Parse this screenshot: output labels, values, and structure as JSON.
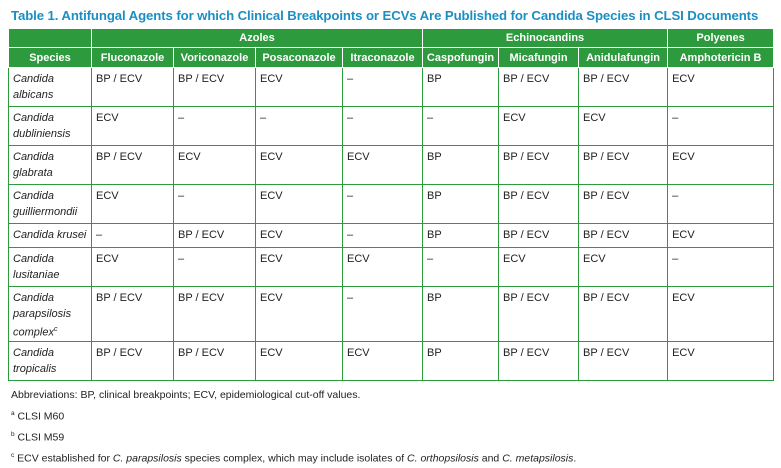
{
  "title": "Table 1. Antifungal Agents for which Clinical Breakpoints or ECVs Are Published for Candida Species in CLSI Documents",
  "groups": {
    "azoles": "Azoles",
    "echinocandins": "Echinocandins",
    "polyenes": "Polyenes"
  },
  "columns": {
    "species": "Species",
    "c1": "Fluconazole",
    "c2": "Voriconazole",
    "c3": "Posaconazole",
    "c4": "Itraconazole",
    "c5": "Caspofungin",
    "c6": "Micafungin",
    "c7": "Anidulafungin",
    "c8": "Amphotericin B"
  },
  "rows": [
    {
      "species": "Candida albicans",
      "vals": [
        "BP / ECV",
        "BP / ECV",
        "ECV",
        "–",
        "BP",
        "BP / ECV",
        "BP / ECV",
        "ECV"
      ]
    },
    {
      "species": "Candida dubliniensis",
      "vals": [
        "ECV",
        "–",
        "–",
        "–",
        "–",
        "ECV",
        "ECV",
        "–"
      ]
    },
    {
      "species": "Candida glabrata",
      "vals": [
        "BP / ECV",
        "ECV",
        "ECV",
        "ECV",
        "BP",
        "BP / ECV",
        "BP / ECV",
        "ECV"
      ]
    },
    {
      "species": "Candida guilliermondii",
      "vals": [
        "ECV",
        "–",
        "ECV",
        "–",
        "BP",
        "BP / ECV",
        "BP / ECV",
        "–"
      ]
    },
    {
      "species": "Candida krusei",
      "vals": [
        "–",
        "BP / ECV",
        "ECV",
        "–",
        "BP",
        "BP / ECV",
        "BP / ECV",
        "ECV"
      ]
    },
    {
      "species": "Candida lusitaniae",
      "vals": [
        "ECV",
        "–",
        "ECV",
        "ECV",
        "–",
        "ECV",
        "ECV",
        "–"
      ]
    },
    {
      "species": "Candida parapsilosis complex",
      "species_sup": "c",
      "vals": [
        "BP / ECV",
        "BP / ECV",
        "ECV",
        "–",
        "BP",
        "BP / ECV",
        "BP / ECV",
        "ECV"
      ]
    },
    {
      "species": "Candida tropicalis",
      "vals": [
        "BP / ECV",
        "BP / ECV",
        "ECV",
        "ECV",
        "BP",
        "BP / ECV",
        "BP / ECV",
        "ECV"
      ]
    }
  ],
  "notes": {
    "abbrev": "Abbreviations: BP, clinical breakpoints; ECV, epidemiological cut-off values.",
    "a_sup": "a",
    "a_text": "CLSI M60",
    "b_sup": "b",
    "b_text": "CLSI M59",
    "c_sup": "c",
    "c_text_1": "ECV established for ",
    "c_text_2": "C. parapsilosis",
    "c_text_3": " species complex, which may include isolates of ",
    "c_text_4": "C. orthopsilosis",
    "c_text_5": " and ",
    "c_text_6": "C. metapsilosis",
    "c_text_7": "."
  }
}
